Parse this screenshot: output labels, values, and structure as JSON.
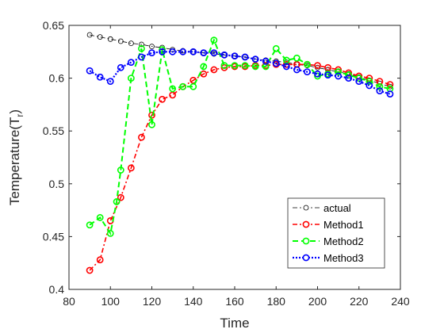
{
  "chart_data": {
    "type": "line",
    "xlabel": "Time",
    "ylabel": "Temperature(T",
    "ylabel_sub": "r",
    "ylabel_close": ")",
    "xlim": [
      80,
      240
    ],
    "ylim": [
      0.4,
      0.65
    ],
    "xticks": [
      80,
      100,
      120,
      140,
      160,
      180,
      200,
      220,
      240
    ],
    "yticks": [
      0.4,
      0.45,
      0.5,
      0.55,
      0.6,
      0.65
    ],
    "xtick_labels": [
      "80",
      "100",
      "120",
      "140",
      "160",
      "180",
      "200",
      "220",
      "240"
    ],
    "ytick_labels": [
      "0.4",
      "0.45",
      "0.5",
      "0.55",
      "0.6",
      "0.65"
    ],
    "grid": false,
    "legend_position": "bottom-right",
    "series": [
      {
        "name": "actual",
        "color": "#000000",
        "style": "dash-dot",
        "x": [
          90,
          95,
          100,
          105,
          110,
          115,
          120,
          125,
          130,
          135,
          140,
          145,
          150,
          155,
          160,
          165,
          170,
          175,
          180,
          185,
          190,
          195,
          200,
          205,
          210,
          215,
          220,
          225,
          230,
          235
        ],
        "y": [
          0.641,
          0.639,
          0.637,
          0.635,
          0.633,
          0.632,
          0.63,
          0.629,
          0.627,
          0.626,
          0.625,
          0.624,
          0.623,
          0.622,
          0.621,
          0.62,
          0.618,
          0.617,
          0.616,
          0.615,
          0.613,
          0.612,
          0.61,
          0.608,
          0.606,
          0.604,
          0.601,
          0.598,
          0.595,
          0.592
        ]
      },
      {
        "name": "Method1",
        "color": "#ff0000",
        "style": "dash-dot",
        "x": [
          90,
          95,
          100,
          105,
          110,
          115,
          120,
          125,
          130,
          135,
          140,
          145,
          150,
          155,
          160,
          165,
          170,
          175,
          180,
          185,
          190,
          195,
          200,
          205,
          210,
          215,
          220,
          225,
          230,
          235
        ],
        "y": [
          0.418,
          0.428,
          0.465,
          0.487,
          0.515,
          0.544,
          0.565,
          0.58,
          0.584,
          0.592,
          0.598,
          0.604,
          0.608,
          0.61,
          0.611,
          0.611,
          0.612,
          0.612,
          0.613,
          0.613,
          0.613,
          0.613,
          0.612,
          0.61,
          0.608,
          0.605,
          0.602,
          0.6,
          0.597,
          0.594
        ]
      },
      {
        "name": "Method2",
        "color": "#00ff00",
        "style": "dashed",
        "x": [
          90,
          95,
          100,
          103,
          105,
          110,
          115,
          120,
          125,
          130,
          135,
          140,
          145,
          150,
          155,
          160,
          165,
          170,
          175,
          180,
          185,
          190,
          195,
          200,
          205,
          210,
          215,
          220,
          225,
          230,
          235
        ],
        "y": [
          0.461,
          0.468,
          0.453,
          0.483,
          0.513,
          0.6,
          0.628,
          0.556,
          0.627,
          0.59,
          0.592,
          0.592,
          0.611,
          0.636,
          0.612,
          0.612,
          0.612,
          0.611,
          0.611,
          0.628,
          0.617,
          0.619,
          0.613,
          0.602,
          0.604,
          0.606,
          0.603,
          0.6,
          0.597,
          0.592,
          0.59
        ]
      },
      {
        "name": "Method3",
        "color": "#0000ff",
        "style": "dotted",
        "x": [
          90,
          95,
          100,
          105,
          110,
          115,
          120,
          125,
          130,
          135,
          140,
          145,
          150,
          155,
          160,
          165,
          170,
          175,
          180,
          185,
          190,
          195,
          200,
          205,
          210,
          215,
          220,
          225,
          230,
          235
        ],
        "y": [
          0.607,
          0.601,
          0.597,
          0.61,
          0.615,
          0.62,
          0.624,
          0.625,
          0.625,
          0.625,
          0.625,
          0.624,
          0.624,
          0.622,
          0.621,
          0.62,
          0.618,
          0.616,
          0.614,
          0.611,
          0.608,
          0.606,
          0.604,
          0.603,
          0.602,
          0.6,
          0.597,
          0.593,
          0.588,
          0.585
        ]
      }
    ]
  }
}
